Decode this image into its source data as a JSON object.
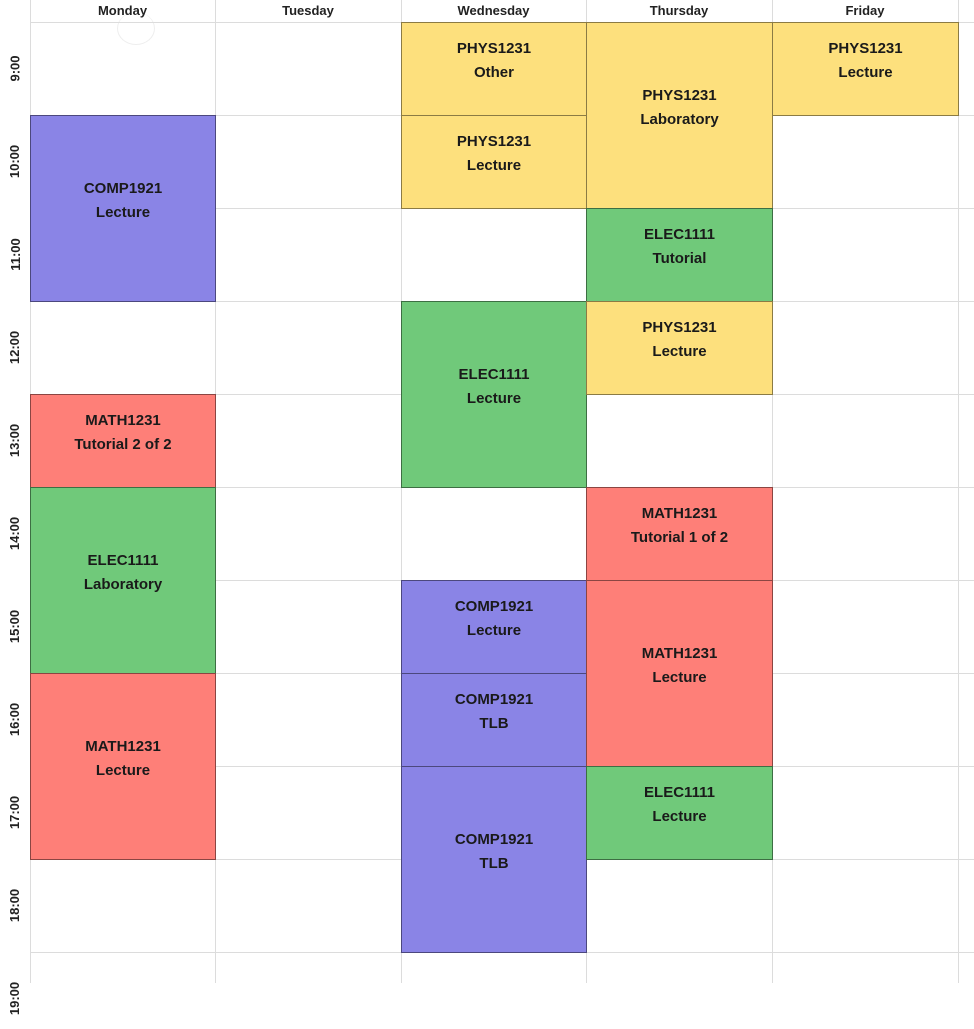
{
  "days": [
    "Monday",
    "Tuesday",
    "Wednesday",
    "Thursday",
    "Friday"
  ],
  "times": [
    "9:00",
    "10:00",
    "11:00",
    "12:00",
    "13:00",
    "14:00",
    "15:00",
    "16:00",
    "17:00",
    "18:00",
    "19:00"
  ],
  "colors": {
    "PHYS1231": "#fde07d",
    "ELEC1111": "#70c97a",
    "COMP1921": "#8a84e6",
    "MATH1231": "#fe7f78"
  },
  "events": [
    {
      "course": "COMP1921",
      "type": "Lecture",
      "day": "Monday",
      "start": "10:00",
      "end": "12:00"
    },
    {
      "course": "MATH1231",
      "type": "Tutorial 2 of 2",
      "day": "Monday",
      "start": "13:00",
      "end": "14:00"
    },
    {
      "course": "ELEC1111",
      "type": "Laboratory",
      "day": "Monday",
      "start": "14:00",
      "end": "16:00"
    },
    {
      "course": "MATH1231",
      "type": "Lecture",
      "day": "Monday",
      "start": "16:00",
      "end": "18:00"
    },
    {
      "course": "PHYS1231",
      "type": "Other",
      "day": "Wednesday",
      "start": "9:00",
      "end": "10:00"
    },
    {
      "course": "PHYS1231",
      "type": "Lecture",
      "day": "Wednesday",
      "start": "10:00",
      "end": "11:00"
    },
    {
      "course": "ELEC1111",
      "type": "Lecture",
      "day": "Wednesday",
      "start": "12:00",
      "end": "14:00"
    },
    {
      "course": "COMP1921",
      "type": "Lecture",
      "day": "Wednesday",
      "start": "15:00",
      "end": "16:00"
    },
    {
      "course": "COMP1921",
      "type": "TLB",
      "day": "Wednesday",
      "start": "16:00",
      "end": "17:00"
    },
    {
      "course": "COMP1921",
      "type": "TLB",
      "day": "Wednesday",
      "start": "17:00",
      "end": "19:00"
    },
    {
      "course": "PHYS1231",
      "type": "Laboratory",
      "day": "Thursday",
      "start": "9:00",
      "end": "11:00"
    },
    {
      "course": "ELEC1111",
      "type": "Tutorial",
      "day": "Thursday",
      "start": "11:00",
      "end": "12:00"
    },
    {
      "course": "PHYS1231",
      "type": "Lecture",
      "day": "Thursday",
      "start": "12:00",
      "end": "13:00"
    },
    {
      "course": "MATH1231",
      "type": "Tutorial 1 of 2",
      "day": "Thursday",
      "start": "14:00",
      "end": "15:00"
    },
    {
      "course": "MATH1231",
      "type": "Lecture",
      "day": "Thursday",
      "start": "15:00",
      "end": "17:00"
    },
    {
      "course": "ELEC1111",
      "type": "Lecture",
      "day": "Thursday",
      "start": "17:00",
      "end": "18:00"
    },
    {
      "course": "PHYS1231",
      "type": "Lecture",
      "day": "Friday",
      "start": "9:00",
      "end": "10:00"
    }
  ]
}
